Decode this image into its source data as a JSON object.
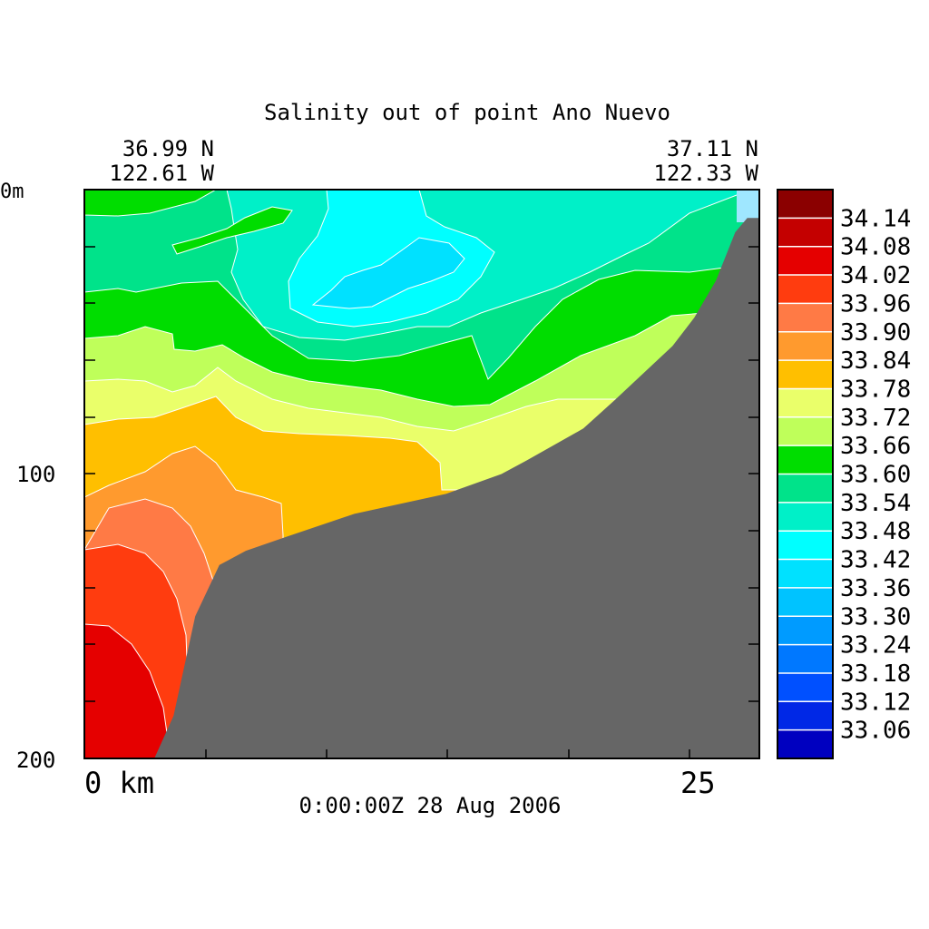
{
  "chart_data": {
    "type": "heatmap",
    "title": "Salinity out of point Ano Nuevo",
    "start_location": {
      "lat": "36.99 N",
      "lon": "122.61 W"
    },
    "end_location": {
      "lat": "37.11 N",
      "lon": "122.33 W"
    },
    "timestamp": "0:00:00Z  28 Aug 2006",
    "x_axis": {
      "label": "km",
      "range": [
        0,
        28
      ],
      "ticks": [
        "0 km",
        "25"
      ]
    },
    "y_axis": {
      "range": [
        0,
        200
      ],
      "inverted": true,
      "ticks": [
        "0m",
        "100",
        "200"
      ]
    },
    "colorbar": {
      "labels": [
        "34.14",
        "34.08",
        "34.02",
        "33.96",
        "33.90",
        "33.84",
        "33.78",
        "33.72",
        "33.66",
        "33.60",
        "33.54",
        "33.48",
        "33.42",
        "33.36",
        "33.30",
        "33.24",
        "33.18",
        "33.12",
        "33.06"
      ],
      "colors": [
        "#8b0000",
        "#c40000",
        "#e50000",
        "#ff3c0f",
        "#ff7a45",
        "#ff9a2e",
        "#ffbf00",
        "#eaff6a",
        "#bfff5a",
        "#00dd00",
        "#00e38a",
        "#00f0c8",
        "#00ffff",
        "#00e1ff",
        "#00c3ff",
        "#009bff",
        "#0078ff",
        "#0050ff",
        "#0028e6",
        "#0000c0"
      ]
    },
    "bathymetry": {
      "label": "seafloor",
      "color": "#666666",
      "points_km_depth": [
        [
          2.9,
          200
        ],
        [
          3.7,
          185
        ],
        [
          4.6,
          150
        ],
        [
          5.6,
          132
        ],
        [
          6.7,
          127
        ],
        [
          8.4,
          122
        ],
        [
          11.2,
          114
        ],
        [
          15.0,
          107
        ],
        [
          17.3,
          100
        ],
        [
          18.4,
          95
        ],
        [
          20.7,
          84
        ],
        [
          22.0,
          74
        ],
        [
          24.4,
          55
        ],
        [
          25.3,
          45
        ],
        [
          26.2,
          32
        ],
        [
          27.0,
          15
        ],
        [
          27.5,
          10
        ],
        [
          28,
          10
        ]
      ]
    },
    "salinity_zones": [
      {
        "level": "33.54",
        "color": "#00e38a"
      },
      {
        "level": "33.48",
        "color": "#00f0c8"
      },
      {
        "level": "33.42",
        "color": "#00ffff"
      },
      {
        "level": "33.36",
        "color": "#00e1ff"
      },
      {
        "level": "33.60",
        "color": "#00dd00"
      },
      {
        "level": "33.66",
        "color": "#bfff5a"
      },
      {
        "level": "33.72",
        "color": "#eaff6a"
      },
      {
        "level": "33.78",
        "color": "#ffbf00"
      },
      {
        "level": "33.84",
        "color": "#ff9a2e"
      },
      {
        "level": "33.90",
        "color": "#ff7a45"
      },
      {
        "level": "33.96",
        "color": "#ff3c0f"
      },
      {
        "level": "34.02",
        "color": "#e50000"
      }
    ]
  }
}
